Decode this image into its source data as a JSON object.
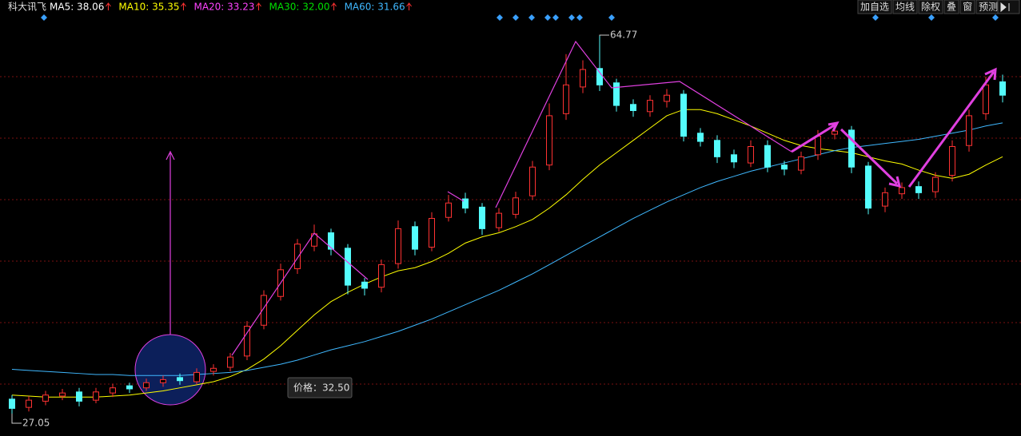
{
  "chart_data": {
    "type": "candlestick",
    "title": "科大讯飞",
    "indicators": [
      {
        "text": "MA5: 38.06",
        "color": "#ffffff"
      },
      {
        "text": "MA10: 35.35",
        "color": "#ffff00"
      },
      {
        "text": "MA20: 33.23",
        "color": "#ff44ff"
      },
      {
        "text": "MA30: 32.00",
        "color": "#00e000"
      },
      {
        "text": "MA60: 31.66",
        "color": "#3fb8ff"
      }
    ],
    "buttons": [
      "加自选",
      "均线",
      "除权",
      "叠",
      "窗",
      "预测"
    ],
    "tooltip": "价格：32.50",
    "up_color": "#ff3232",
    "down_color": "#54fcfc",
    "ylim": [
      25.81,
      68.27
    ],
    "open": [
      29.4,
      28.6,
      29.2,
      29.7,
      30.1,
      29.3,
      30.0,
      30.7,
      30.5,
      31.0,
      31.5,
      31.1,
      32.1,
      32.5,
      33.6,
      36.6,
      39.4,
      42.1,
      44.3,
      45.6,
      44.1,
      40.8,
      40.3,
      42.6,
      46.2,
      44.2,
      47.1,
      48.9,
      48.1,
      46.1,
      47.4,
      49.2,
      52.2,
      57.2,
      59.8,
      61.6,
      60.2,
      58.1,
      57.4,
      58.4,
      59.1,
      55.3,
      54.6,
      53.2,
      52.4,
      54.1,
      52.2,
      51.7,
      53.2,
      55.2,
      55.6,
      52.1,
      48.2,
      49.4,
      50.1,
      49.6,
      51.2,
      54.1,
      57.2,
      60.3
    ],
    "high": [
      29.8,
      29.7,
      30.2,
      30.4,
      30.5,
      30.5,
      30.9,
      31.0,
      31.4,
      31.7,
      31.9,
      32.4,
      32.8,
      33.9,
      37.0,
      40.0,
      42.6,
      45.0,
      46.4,
      46.0,
      44.5,
      41.2,
      43.0,
      46.8,
      46.7,
      47.6,
      49.3,
      49.5,
      48.5,
      48.0,
      49.6,
      52.6,
      58.2,
      63.0,
      62.4,
      64.77,
      60.6,
      58.6,
      59.0,
      59.6,
      59.5,
      55.8,
      55.1,
      53.7,
      54.6,
      54.6,
      52.6,
      53.5,
      55.6,
      56.3,
      56.0,
      52.5,
      50.0,
      50.5,
      50.6,
      51.5,
      54.6,
      57.6,
      60.8,
      61.0
    ],
    "low": [
      27.05,
      28.2,
      28.8,
      29.3,
      28.7,
      29.0,
      29.6,
      30.0,
      30.2,
      30.6,
      30.8,
      30.8,
      31.7,
      32.1,
      33.2,
      36.2,
      39.0,
      41.6,
      43.8,
      43.4,
      39.6,
      39.5,
      39.8,
      42.1,
      43.4,
      43.8,
      46.7,
      47.5,
      45.4,
      45.7,
      47.0,
      48.8,
      51.7,
      56.6,
      59.2,
      59.4,
      57.4,
      56.9,
      56.9,
      57.8,
      54.5,
      54.0,
      52.4,
      51.9,
      52.0,
      51.5,
      51.2,
      51.3,
      52.7,
      54.7,
      51.4,
      47.4,
      47.6,
      48.9,
      48.9,
      49.0,
      50.6,
      53.5,
      56.6,
      58.3
    ],
    "close": [
      28.5,
      29.3,
      29.8,
      30.0,
      29.2,
      30.1,
      30.5,
      30.4,
      31.0,
      31.3,
      31.2,
      32.0,
      32.4,
      33.5,
      36.5,
      39.5,
      42.0,
      44.5,
      45.5,
      44.0,
      40.5,
      40.2,
      42.5,
      46.0,
      44.0,
      47.0,
      48.5,
      48.0,
      46.0,
      47.5,
      49.0,
      52.0,
      57.0,
      60.0,
      61.5,
      60.0,
      58.0,
      57.5,
      58.5,
      59.0,
      55.0,
      54.5,
      53.0,
      52.5,
      54.0,
      52.0,
      51.8,
      53.0,
      55.0,
      55.5,
      52.0,
      48.0,
      49.5,
      50.0,
      49.5,
      51.0,
      54.0,
      57.0,
      60.0,
      59.0
    ],
    "ma_lines": [
      {
        "color": "#ffff00",
        "values": [
          29.8,
          29.7,
          29.6,
          29.6,
          29.6,
          29.6,
          29.7,
          29.8,
          30.0,
          30.2,
          30.5,
          30.8,
          31.1,
          31.6,
          32.3,
          33.3,
          34.6,
          36.1,
          37.6,
          38.9,
          39.8,
          40.6,
          41.3,
          41.9,
          42.2,
          42.8,
          43.6,
          44.6,
          45.2,
          45.6,
          46.2,
          46.9,
          48.0,
          49.3,
          50.8,
          52.2,
          53.4,
          54.6,
          55.8,
          57.0,
          57.6,
          57.6,
          57.2,
          56.6,
          56.0,
          55.3,
          54.6,
          54.1,
          53.8,
          53.6,
          53.4,
          53.0,
          52.6,
          52.3,
          51.7,
          51.2,
          50.9,
          51.3,
          52.2,
          53.0
        ]
      },
      {
        "color": "#3fb8ff",
        "values": [
          32.3,
          32.2,
          32.1,
          32.0,
          31.9,
          31.8,
          31.8,
          31.7,
          31.7,
          31.7,
          31.7,
          31.8,
          31.9,
          32.0,
          32.2,
          32.5,
          32.8,
          33.2,
          33.7,
          34.2,
          34.6,
          35.0,
          35.5,
          36.0,
          36.6,
          37.2,
          37.9,
          38.6,
          39.3,
          40.0,
          40.8,
          41.6,
          42.5,
          43.4,
          44.3,
          45.2,
          46.1,
          47.0,
          47.8,
          48.6,
          49.3,
          50.0,
          50.6,
          51.1,
          51.6,
          52.0,
          52.4,
          52.8,
          53.2,
          53.6,
          53.9,
          54.1,
          54.3,
          54.5,
          54.7,
          55.0,
          55.3,
          55.6,
          56.0,
          56.3
        ]
      }
    ]
  }
}
